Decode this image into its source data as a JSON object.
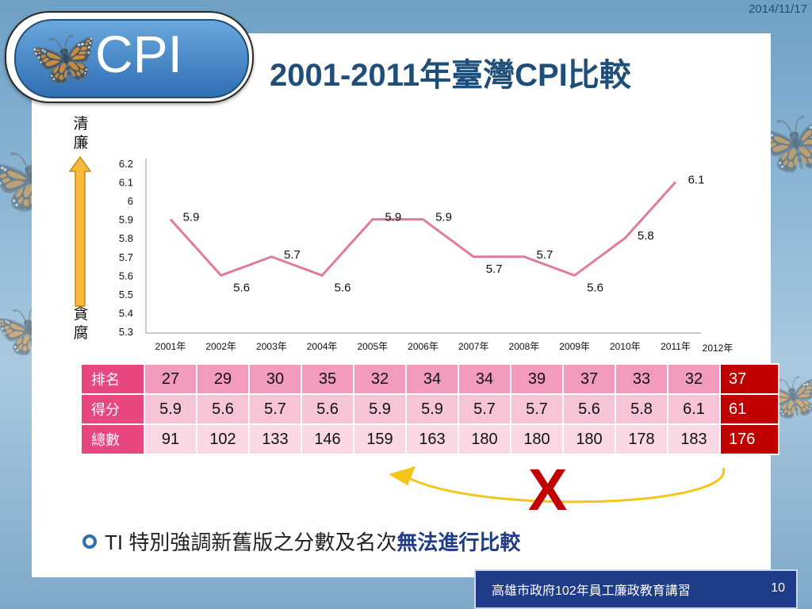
{
  "header": {
    "date": "2014/11/17",
    "logo_text": "CPI",
    "title": "2001-2011年臺灣CPI比較"
  },
  "axis_labels": {
    "top": "清廉",
    "bottom": "貪腐"
  },
  "chart_data": {
    "type": "line",
    "x": [
      "2001年",
      "2002年",
      "2003年",
      "2004年",
      "2005年",
      "2006年",
      "2007年",
      "2008年",
      "2009年",
      "2010年",
      "2011年"
    ],
    "extra_x_label": "2012年",
    "series": [
      {
        "values": [
          5.9,
          5.6,
          5.7,
          5.6,
          5.9,
          5.9,
          5.7,
          5.7,
          5.6,
          5.8,
          6.1
        ]
      }
    ],
    "y_ticks": [
      "6.2",
      "6.1",
      "6",
      "5.9",
      "5.8",
      "5.7",
      "5.6",
      "5.5",
      "5.4",
      "5.3"
    ],
    "ylim": [
      5.3,
      6.2
    ],
    "data_labels": [
      "5.9",
      "5.6",
      "5.7",
      "5.6",
      "5.9",
      "5.9",
      "5.7",
      "5.7",
      "5.6",
      "5.8",
      "6.1"
    ],
    "line_color": "#e07b98",
    "grid": false
  },
  "table": {
    "rows": [
      {
        "label": "排名",
        "values": [
          "27",
          "29",
          "30",
          "35",
          "32",
          "34",
          "34",
          "39",
          "37",
          "33",
          "32"
        ],
        "highlight": "37"
      },
      {
        "label": "得分",
        "values": [
          "5.9",
          "5.6",
          "5.7",
          "5.6",
          "5.9",
          "5.9",
          "5.7",
          "5.7",
          "5.6",
          "5.8",
          "6.1"
        ],
        "highlight": "61"
      },
      {
        "label": "總數",
        "values": [
          "91",
          "102",
          "133",
          "146",
          "159",
          "163",
          "180",
          "180",
          "180",
          "178",
          "183"
        ],
        "highlight": "176"
      }
    ]
  },
  "annotation": {
    "mark": "X",
    "mark_color": "#c00000",
    "arrow_color": "#f5c518"
  },
  "bullet": {
    "prefix": "TI 特別強調新舊版之分數及名次",
    "emphasis": "無法進行比較"
  },
  "footer": {
    "text": "高雄市政府102年員工廉政教育講習",
    "page": "10"
  },
  "colors": {
    "title": "#1f4e79",
    "header_cell": "#e8467e",
    "highlight_cell": "#c00000",
    "footer_bg": "#1f3c88"
  }
}
